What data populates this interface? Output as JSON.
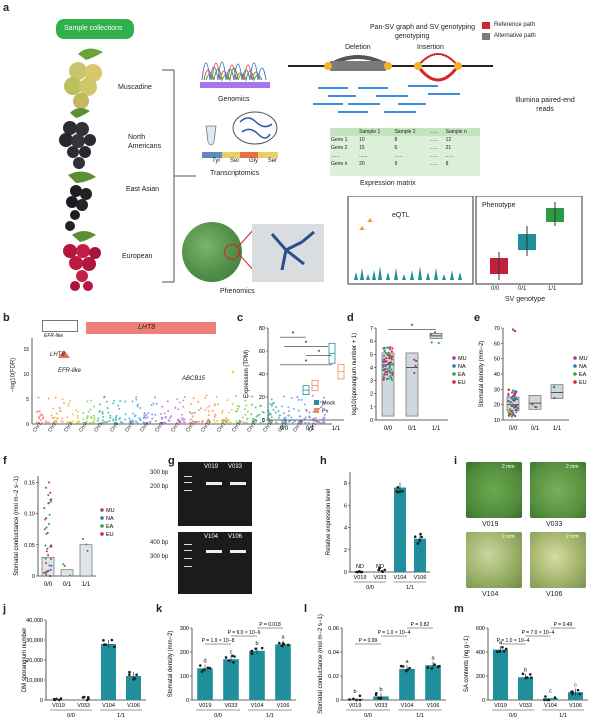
{
  "panel_labels": [
    "a",
    "b",
    "c",
    "d",
    "e",
    "f",
    "g",
    "h",
    "i",
    "j",
    "k",
    "l",
    "m"
  ],
  "panel_a": {
    "sample_collections": "Sample collections",
    "species": [
      "Muscadine",
      "North Americans",
      "East Asian",
      "European"
    ],
    "genomics": "Genomics",
    "transcriptomics": "Transcriptomics",
    "phenomics": "Phenomics",
    "pan_sv": "Pan-SV graph and SV genotyping",
    "deletion": "Deletion",
    "insertion": "Insertion",
    "legend_ref": "Reference path",
    "legend_alt": "Alternative path",
    "illumina": "Illumina paired-end reads",
    "expression_matrix": "Expression matrix",
    "matrix_header": [
      "",
      "Sample 1",
      "Sample 2",
      "......",
      "Sample n"
    ],
    "matrix_rows": [
      [
        "Gene 1",
        "10",
        "8",
        "......",
        "12"
      ],
      [
        "Gene 2",
        "15",
        "6",
        "......",
        "21"
      ],
      [
        "......",
        "......",
        "......",
        "......",
        "......"
      ],
      [
        "Gene n",
        "20",
        "9",
        "......",
        "8"
      ]
    ],
    "aa_labels": [
      "Tyr",
      "Ser",
      "Gly",
      "Ser"
    ],
    "eqtl": "eQTL",
    "phenotype": "Phenotype",
    "sv_genotype": "SV genotype",
    "genotypes": [
      "0/0",
      "0/1",
      "1/1"
    ],
    "colors": {
      "reference": "#d6232a",
      "alternative": "#7a7a7a",
      "teal": "#1f8f9c",
      "green_box": "#2fa84f"
    }
  },
  "panel_b": {
    "gene_track": "LHT8",
    "gene_track_small": "EFR-like",
    "ylabel": "−log10(FDR)",
    "annotations": [
      "LHT8",
      "EFR-like",
      "ABCB15"
    ],
    "chromosomes": [
      "Chr1",
      "Chr2",
      "Chr3",
      "Chr4",
      "Chr5",
      "Chr6",
      "Chr7",
      "Chr8",
      "Chr9",
      "Chr10",
      "Chr11",
      "Chr12",
      "Chr13",
      "Chr14",
      "Chr15",
      "Chr16",
      "Chr17",
      "Chr18",
      "Chr19"
    ]
  },
  "chart_data": [
    {
      "panel": "c",
      "type": "box",
      "ylabel": "Expression (TPM)",
      "categories": [
        "0/0",
        "0/1",
        "1/1"
      ],
      "yticks": [
        0,
        20,
        40,
        60,
        80
      ],
      "ylim": [
        0,
        80
      ],
      "series": [
        {
          "name": "Mock",
          "medians": [
            0,
            26,
            58
          ]
        },
        {
          "name": "Pv",
          "medians": [
            0,
            30,
            42
          ]
        }
      ],
      "sig": [
        "*",
        "*",
        "*",
        "*"
      ]
    },
    {
      "panel": "d",
      "type": "box",
      "ylabel": "log10(sporangium number + 1)",
      "categories": [
        "0/0",
        "0/1",
        "1/1"
      ],
      "yticks": [
        0,
        1,
        2,
        3,
        4,
        5,
        6,
        7
      ],
      "ylim": [
        0,
        7
      ],
      "medians": [
        4.2,
        4.0,
        6.4
      ],
      "legend": [
        "MU",
        "NA",
        "EA",
        "EU"
      ],
      "sig": [
        "*"
      ]
    },
    {
      "panel": "e",
      "type": "box",
      "ylabel": "Stomatal density (mm−2)",
      "categories": [
        "0/0",
        "0/1",
        "1/1"
      ],
      "yticks": [
        10,
        20,
        30,
        40,
        50,
        60,
        70
      ],
      "ylim": [
        10,
        70
      ],
      "medians": [
        20,
        21,
        28
      ],
      "legend": [
        "MU",
        "NA",
        "EA",
        "EU"
      ]
    },
    {
      "panel": "f",
      "type": "bar",
      "ylabel": "Stomatal conductance (mol m−2 s−1)",
      "categories": [
        "0/0",
        "0/1",
        "1/1"
      ],
      "yticks": [
        0,
        0.05,
        0.1,
        0.15
      ],
      "ylim": [
        0,
        0.16
      ],
      "values": [
        0.03,
        0.01,
        0.05
      ],
      "legend": [
        "MU",
        "NA",
        "EA",
        "EU"
      ]
    },
    {
      "panel": "h",
      "type": "bar",
      "ylabel": "Relative expression level",
      "categories": [
        "V019",
        "V033",
        "V104",
        "V106"
      ],
      "groups": [
        "0/0",
        "1/1"
      ],
      "yticks": [
        0,
        2,
        4,
        6,
        8
      ],
      "ylim": [
        0,
        9
      ],
      "values": [
        0,
        0,
        7.6,
        3.0
      ],
      "nd": [
        "ND",
        "ND"
      ]
    },
    {
      "panel": "j",
      "type": "bar",
      "ylabel": "DM sporangium number",
      "categories": [
        "V019",
        "V033",
        "V104",
        "V106"
      ],
      "groups": [
        "0/0",
        "1/1"
      ],
      "yticks": [
        0,
        10000,
        20000,
        30000,
        40000
      ],
      "ytick_labels": [
        "0",
        "10,000",
        "20,000",
        "30,000",
        "40,000"
      ],
      "ylim": [
        0,
        40000
      ],
      "values": [
        0,
        0,
        28000,
        12000
      ]
    },
    {
      "panel": "k",
      "type": "bar",
      "ylabel": "Stomatal density (mm−2)",
      "categories": [
        "V019",
        "V033",
        "V104",
        "V106"
      ],
      "groups": [
        "0/0",
        "1/1"
      ],
      "yticks": [
        0,
        100,
        200,
        300
      ],
      "ylim": [
        0,
        300
      ],
      "values": [
        132,
        170,
        205,
        232
      ],
      "letters": [
        "d",
        "c",
        "b",
        "a"
      ],
      "pvals": [
        "P = 1.9 × 10−8",
        "P = 9.0 × 10−6",
        "P = 0.018"
      ]
    },
    {
      "panel": "l",
      "type": "bar",
      "ylabel": "Stomatal conductance (mol m−2 s−1)",
      "categories": [
        "V019",
        "V033",
        "V104",
        "V106"
      ],
      "groups": [
        "0/0",
        "1/1"
      ],
      "yticks": [
        0,
        0.02,
        0.04,
        0.06
      ],
      "ylim": [
        0,
        0.06
      ],
      "values": [
        0.001,
        0.003,
        0.026,
        0.029
      ],
      "letters": [
        "b",
        "b",
        "a",
        "a"
      ],
      "pvals": [
        "P = 0.99",
        "P = 1.0 × 10−4",
        "P = 0.82"
      ]
    },
    {
      "panel": "m",
      "type": "bar",
      "ylabel": "SA contents (ng g−1)",
      "categories": [
        "V019",
        "V033",
        "V104",
        "V106"
      ],
      "groups": [
        "0/0",
        "1/1"
      ],
      "yticks": [
        0,
        200,
        400,
        600
      ],
      "ylim": [
        0,
        600
      ],
      "values": [
        420,
        190,
        15,
        65
      ],
      "letters": [
        "a",
        "b",
        "c",
        "c"
      ],
      "pvals": [
        "P = 1.0 × 10−4",
        "P = 7.0 × 10−4",
        "P = 0.49"
      ]
    }
  ],
  "panel_g": {
    "ladder_top": [
      "300 bp",
      "200 bp"
    ],
    "ladder_bottom": [
      "400 bp",
      "300 bp"
    ],
    "lanes_top": [
      "V019",
      "V033"
    ],
    "lanes_bottom": [
      "V104",
      "V106"
    ]
  },
  "panel_i": {
    "scale": "2 mm",
    "labels": [
      "V019",
      "V033",
      "V104",
      "V106"
    ]
  }
}
